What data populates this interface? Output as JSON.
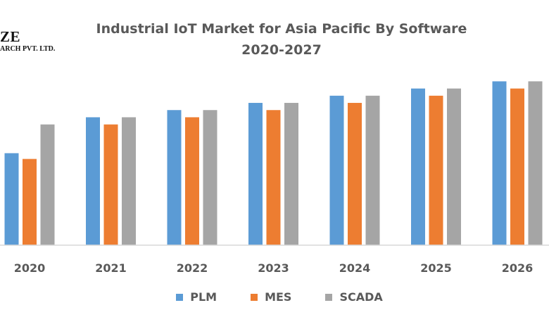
{
  "logo": {
    "line1": "ZE",
    "line2": "ARCH PVT. LTD."
  },
  "chart_data": {
    "type": "bar",
    "title": "Industrial IoT Market for Asia Pacific By Software",
    "subtitle": "2020-2027",
    "xlabel": "",
    "ylabel": "",
    "categories": [
      "2020",
      "2021",
      "2022",
      "2023",
      "2024",
      "2025",
      "2026"
    ],
    "series": [
      {
        "name": "PLM",
        "color": "#5B9BD5",
        "values": [
          12.8,
          17.8,
          18.8,
          19.8,
          20.8,
          21.8,
          22.8
        ]
      },
      {
        "name": "MES",
        "color": "#ED7D31",
        "values": [
          12.0,
          16.8,
          17.8,
          18.8,
          19.8,
          20.8,
          21.8
        ]
      },
      {
        "name": "SCADA",
        "color": "#A5A5A5",
        "values": [
          16.8,
          17.8,
          18.8,
          19.8,
          20.8,
          21.8,
          22.8
        ]
      }
    ],
    "ylim": [
      0,
      24
    ],
    "y_axis_visible": false,
    "grid": false,
    "legend_position": "bottom",
    "note": "No y-axis scale shown; values are relative estimates"
  }
}
